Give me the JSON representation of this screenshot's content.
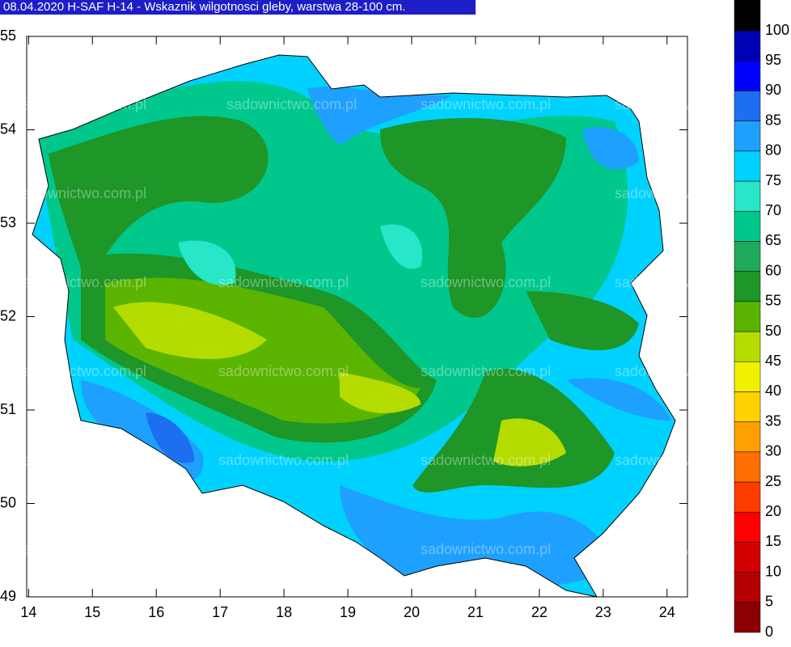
{
  "chart_data": {
    "type": "map",
    "title": "08.04.2020 H-SAF H-14 - Wskaznik wilgotnosci gleby, warstwa 28-100 cm.",
    "watermark": "sadownictwo.com.pl",
    "xlim": [
      13.97,
      24.32
    ],
    "xticks": [
      14,
      15,
      16,
      17,
      18,
      19,
      20,
      21,
      22,
      23,
      24
    ],
    "ylim": [
      49,
      55
    ],
    "yticks": [
      49,
      50,
      51,
      52,
      53,
      54,
      55
    ],
    "colorbar": {
      "levels": [
        0,
        5,
        10,
        15,
        20,
        25,
        30,
        35,
        40,
        45,
        50,
        55,
        60,
        65,
        70,
        75,
        80,
        85,
        90,
        95,
        100
      ],
      "colors": [
        "#8b0000",
        "#b40000",
        "#d20000",
        "#ff0000",
        "#ff3c00",
        "#ff6e00",
        "#ffa000",
        "#ffd200",
        "#f0f000",
        "#b4dc00",
        "#5ab400",
        "#1e9628",
        "#1eaa5a",
        "#00c88c",
        "#28e6c8",
        "#00d2ff",
        "#1ea0ff",
        "#1e6ef0",
        "#0000ff",
        "#0000b4",
        "#000064"
      ],
      "top_color": "#000000"
    }
  }
}
